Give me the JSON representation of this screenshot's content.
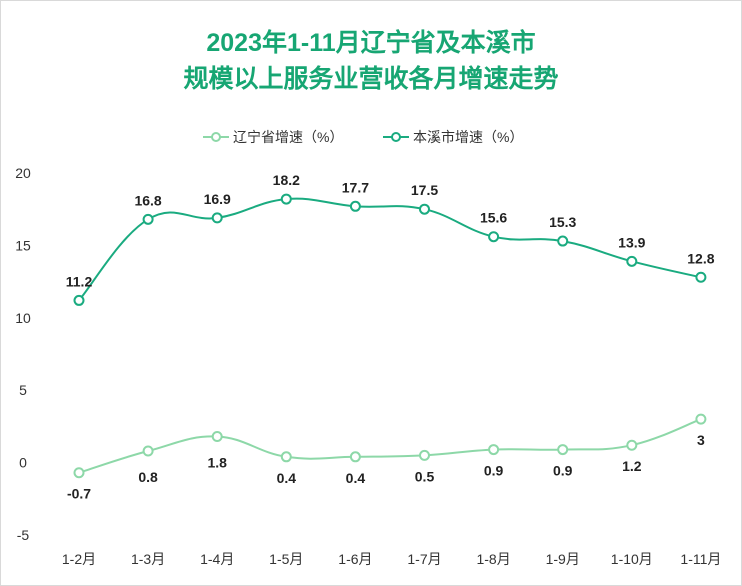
{
  "chart_data": {
    "type": "line",
    "title_lines": [
      "2023年1-11月辽宁省及本溪市",
      "规模以上服务业营收各月增速走势"
    ],
    "categories": [
      "1-2月",
      "1-3月",
      "1-4月",
      "1-5月",
      "1-6月",
      "1-7月",
      "1-8月",
      "1-9月",
      "1-10月",
      "1-11月"
    ],
    "series": [
      {
        "name": "辽宁省增速（%）",
        "color": "#8dd8a8",
        "values": [
          -0.7,
          0.8,
          1.8,
          0.4,
          0.4,
          0.5,
          0.9,
          0.9,
          1.2,
          3
        ]
      },
      {
        "name": "本溪市增速（%）",
        "color": "#1aab80",
        "values": [
          11.2,
          16.8,
          16.9,
          18.2,
          17.7,
          17.5,
          15.6,
          15.3,
          13.9,
          12.8
        ]
      }
    ],
    "ylim": [
      -5,
      20
    ],
    "yticks": [
      -5,
      0,
      5,
      10,
      15,
      20
    ],
    "grid": false,
    "legend_position": "top"
  }
}
